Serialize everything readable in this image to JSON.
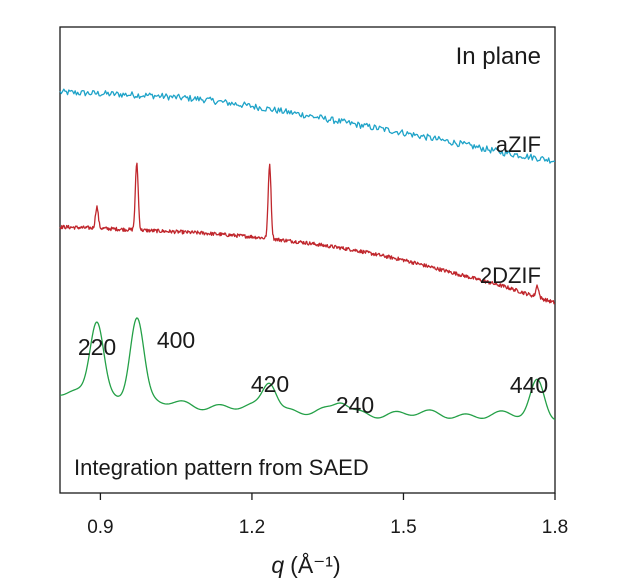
{
  "chart_data": {
    "type": "line",
    "title": "In plane",
    "xlabel_symbol": "q",
    "xlabel_unit": "(Å⁻¹)",
    "xlim": [
      0.82,
      1.8
    ],
    "xticks": [
      "0.9",
      "1.2",
      "1.5",
      "1.8"
    ],
    "xtick_values": [
      0.9,
      1.2,
      1.5,
      1.8
    ],
    "ylabel": "",
    "y_axis_shown": false,
    "grid": false,
    "offset_traces": true,
    "colors": {
      "aZIF": "#1fa3c8",
      "2DZIF": "#c0272d",
      "SAED": "#24a047",
      "axes": "#1a1a1a"
    },
    "series": [
      {
        "name": "aZIF",
        "label_text": "aZIF",
        "description_shape": "noisy, monotonically decreasing amorphous background",
        "x": [
          0.82,
          0.9,
          1.0,
          1.1,
          1.2,
          1.3,
          1.4,
          1.5,
          1.6,
          1.7,
          1.8
        ],
        "y": [
          0.86,
          0.857,
          0.853,
          0.845,
          0.83,
          0.812,
          0.792,
          0.773,
          0.752,
          0.73,
          0.713
        ]
      },
      {
        "name": "2DZIF",
        "label_text": "2DZIF",
        "description_shape": "decreasing background with sharp peaks",
        "x": [
          0.82,
          0.9,
          1.0,
          1.1,
          1.2,
          1.3,
          1.4,
          1.5,
          1.6,
          1.7,
          1.8
        ],
        "y": [
          0.571,
          0.568,
          0.563,
          0.558,
          0.55,
          0.538,
          0.522,
          0.5,
          0.472,
          0.443,
          0.408
        ],
        "peaks": [
          {
            "x": 0.893,
            "height": 0.046
          },
          {
            "x": 0.972,
            "height": 0.144
          },
          {
            "x": 1.235,
            "height": 0.16
          },
          {
            "x": 1.765,
            "height": 0.025
          }
        ]
      },
      {
        "name": "SAED",
        "label_text": "Integration pattern from SAED",
        "description_shape": "smooth pattern with broad indexed peaks",
        "baseline": {
          "x": [
            0.82,
            1.0,
            1.2,
            1.4,
            1.6,
            1.8
          ],
          "y": [
            0.215,
            0.195,
            0.182,
            0.172,
            0.168,
            0.165
          ]
        },
        "peaks": [
          {
            "x": 0.893,
            "height": 0.165,
            "label": "220"
          },
          {
            "x": 0.972,
            "height": 0.182,
            "label": "400"
          },
          {
            "x": 1.235,
            "height": 0.06,
            "label": "420"
          },
          {
            "x": 1.377,
            "height": 0.022,
            "label": "240"
          },
          {
            "x": 1.765,
            "height": 0.075,
            "label": "440"
          }
        ]
      }
    ],
    "annotations": [
      "220",
      "400",
      "420",
      "240",
      "440"
    ]
  }
}
